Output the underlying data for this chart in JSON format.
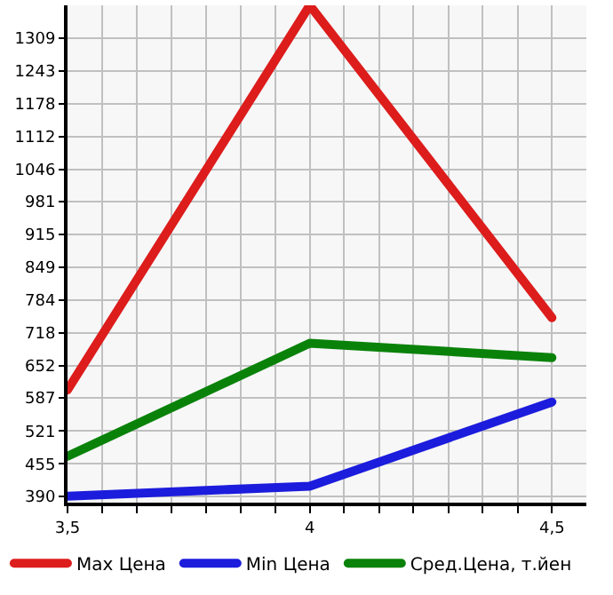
{
  "chart_data": {
    "type": "line",
    "x": [
      3.5,
      4,
      4.5
    ],
    "series": [
      {
        "name": "Max Цена",
        "color": "#dd1c1c",
        "values": [
          603,
          1375,
          748
        ]
      },
      {
        "name": "Min Цена",
        "color": "#1c1cdd",
        "values": [
          390,
          410,
          579
        ]
      },
      {
        "name": "Сред.Цена, т.йен",
        "color": "#0a820a",
        "values": [
          470,
          697,
          668
        ]
      }
    ],
    "xlim": [
      3.5,
      4.571
    ],
    "ylim": [
      377,
      1375
    ],
    "xticks": [
      {
        "value": 3.5,
        "label": "3,5"
      },
      {
        "value": 3.571,
        "label": null
      },
      {
        "value": 3.643,
        "label": null
      },
      {
        "value": 3.714,
        "label": null
      },
      {
        "value": 3.786,
        "label": null
      },
      {
        "value": 3.857,
        "label": null
      },
      {
        "value": 3.929,
        "label": null
      },
      4,
      {
        "value": 4.071,
        "label": null
      },
      {
        "value": 4.143,
        "label": null
      },
      {
        "value": 4.214,
        "label": null
      },
      {
        "value": 4.286,
        "label": null
      },
      {
        "value": 4.357,
        "label": null
      },
      {
        "value": 4.429,
        "label": null
      },
      {
        "value": 4.5,
        "label": "4,5"
      }
    ],
    "yticks": [
      390,
      455,
      521,
      587,
      652,
      718,
      784,
      849,
      915,
      981,
      1046,
      1112,
      1178,
      1243,
      1309
    ],
    "grid": true,
    "legend": "bottom",
    "marker": "none",
    "line_style": "solid"
  }
}
